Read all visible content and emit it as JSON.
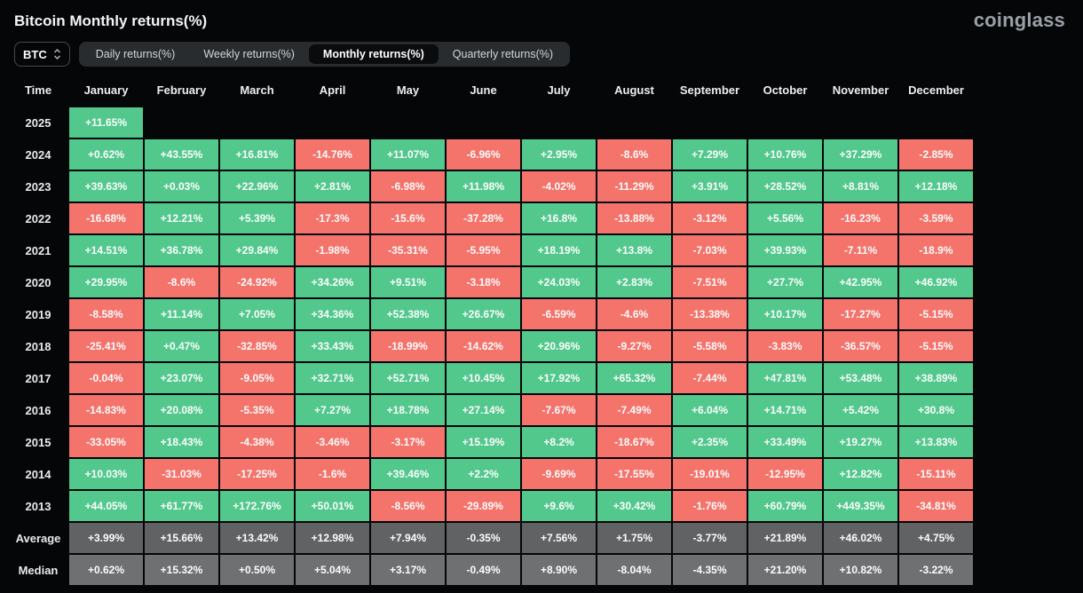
{
  "header": {
    "title": "Bitcoin Monthly returns(%)",
    "brand": "coinglass"
  },
  "controls": {
    "coin_select": "BTC",
    "tabs": [
      {
        "label": "Daily returns(%)",
        "active": false
      },
      {
        "label": "Weekly returns(%)",
        "active": false
      },
      {
        "label": "Monthly returns(%)",
        "active": true
      },
      {
        "label": "Quarterly returns(%)",
        "active": false
      }
    ]
  },
  "colors": {
    "positive": "#52c88c",
    "negative": "#f4736b",
    "average_row": "#606264",
    "median_row": "#6e7072",
    "background": "#050608"
  },
  "chart_data": {
    "type": "table",
    "title": "Bitcoin Monthly returns(%)",
    "columns": [
      "Time",
      "January",
      "February",
      "March",
      "April",
      "May",
      "June",
      "July",
      "August",
      "September",
      "October",
      "November",
      "December"
    ],
    "rows": [
      {
        "time": "2025",
        "type": "year",
        "values": [
          "+11.65%",
          "",
          "",
          "",
          "",
          "",
          "",
          "",
          "",
          "",
          "",
          ""
        ]
      },
      {
        "time": "2024",
        "type": "year",
        "values": [
          "+0.62%",
          "+43.55%",
          "+16.81%",
          "-14.76%",
          "+11.07%",
          "-6.96%",
          "+2.95%",
          "-8.6%",
          "+7.29%",
          "+10.76%",
          "+37.29%",
          "-2.85%"
        ]
      },
      {
        "time": "2023",
        "type": "year",
        "values": [
          "+39.63%",
          "+0.03%",
          "+22.96%",
          "+2.81%",
          "-6.98%",
          "+11.98%",
          "-4.02%",
          "-11.29%",
          "+3.91%",
          "+28.52%",
          "+8.81%",
          "+12.18%"
        ]
      },
      {
        "time": "2022",
        "type": "year",
        "values": [
          "-16.68%",
          "+12.21%",
          "+5.39%",
          "-17.3%",
          "-15.6%",
          "-37.28%",
          "+16.8%",
          "-13.88%",
          "-3.12%",
          "+5.56%",
          "-16.23%",
          "-3.59%"
        ]
      },
      {
        "time": "2021",
        "type": "year",
        "values": [
          "+14.51%",
          "+36.78%",
          "+29.84%",
          "-1.98%",
          "-35.31%",
          "-5.95%",
          "+18.19%",
          "+13.8%",
          "-7.03%",
          "+39.93%",
          "-7.11%",
          "-18.9%"
        ]
      },
      {
        "time": "2020",
        "type": "year",
        "values": [
          "+29.95%",
          "-8.6%",
          "-24.92%",
          "+34.26%",
          "+9.51%",
          "-3.18%",
          "+24.03%",
          "+2.83%",
          "-7.51%",
          "+27.7%",
          "+42.95%",
          "+46.92%"
        ]
      },
      {
        "time": "2019",
        "type": "year",
        "values": [
          "-8.58%",
          "+11.14%",
          "+7.05%",
          "+34.36%",
          "+52.38%",
          "+26.67%",
          "-6.59%",
          "-4.6%",
          "-13.38%",
          "+10.17%",
          "-17.27%",
          "-5.15%"
        ]
      },
      {
        "time": "2018",
        "type": "year",
        "values": [
          "-25.41%",
          "+0.47%",
          "-32.85%",
          "+33.43%",
          "-18.99%",
          "-14.62%",
          "+20.96%",
          "-9.27%",
          "-5.58%",
          "-3.83%",
          "-36.57%",
          "-5.15%"
        ]
      },
      {
        "time": "2017",
        "type": "year",
        "values": [
          "-0.04%",
          "+23.07%",
          "-9.05%",
          "+32.71%",
          "+52.71%",
          "+10.45%",
          "+17.92%",
          "+65.32%",
          "-7.44%",
          "+47.81%",
          "+53.48%",
          "+38.89%"
        ]
      },
      {
        "time": "2016",
        "type": "year",
        "values": [
          "-14.83%",
          "+20.08%",
          "-5.35%",
          "+7.27%",
          "+18.78%",
          "+27.14%",
          "-7.67%",
          "-7.49%",
          "+6.04%",
          "+14.71%",
          "+5.42%",
          "+30.8%"
        ]
      },
      {
        "time": "2015",
        "type": "year",
        "values": [
          "-33.05%",
          "+18.43%",
          "-4.38%",
          "-3.46%",
          "-3.17%",
          "+15.19%",
          "+8.2%",
          "-18.67%",
          "+2.35%",
          "+33.49%",
          "+19.27%",
          "+13.83%"
        ]
      },
      {
        "time": "2014",
        "type": "year",
        "values": [
          "+10.03%",
          "-31.03%",
          "-17.25%",
          "-1.6%",
          "+39.46%",
          "+2.2%",
          "-9.69%",
          "-17.55%",
          "-19.01%",
          "-12.95%",
          "+12.82%",
          "-15.11%"
        ]
      },
      {
        "time": "2013",
        "type": "year",
        "values": [
          "+44.05%",
          "+61.77%",
          "+172.76%",
          "+50.01%",
          "-8.56%",
          "-29.89%",
          "+9.6%",
          "+30.42%",
          "-1.76%",
          "+60.79%",
          "+449.35%",
          "-34.81%"
        ]
      },
      {
        "time": "Average",
        "type": "average",
        "values": [
          "+3.99%",
          "+15.66%",
          "+13.42%",
          "+12.98%",
          "+7.94%",
          "-0.35%",
          "+7.56%",
          "+1.75%",
          "-3.77%",
          "+21.89%",
          "+46.02%",
          "+4.75%"
        ]
      },
      {
        "time": "Median",
        "type": "median",
        "values": [
          "+0.62%",
          "+15.32%",
          "+0.50%",
          "+5.04%",
          "+3.17%",
          "-0.49%",
          "+8.90%",
          "-8.04%",
          "-4.35%",
          "+21.20%",
          "+10.82%",
          "-3.22%"
        ]
      }
    ]
  }
}
